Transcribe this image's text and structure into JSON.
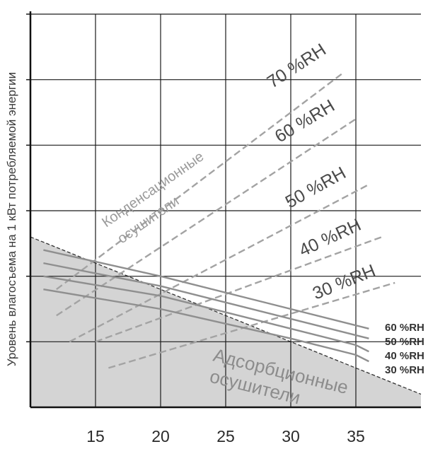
{
  "chart_data": {
    "type": "line",
    "title": "",
    "xlabel": "",
    "ylabel": "Уровень влагосъема на 1 кВт потребляемой энергии",
    "x_ticks": [
      15,
      20,
      25,
      30,
      35
    ],
    "xlim": [
      10,
      40
    ],
    "ylim": [
      0,
      6
    ],
    "grid": true,
    "regions": {
      "condensation": "Конденсационные осушители",
      "adsorption": "Адсорбционные осушители",
      "adsorption_boundary": {
        "x": [
          10,
          40
        ],
        "y": [
          2.6,
          0.2
        ]
      }
    },
    "condensation_series": [
      {
        "name": "70 %RH",
        "x": [
          12,
          34
        ],
        "y": [
          1.8,
          5.1
        ]
      },
      {
        "name": "60 %RH",
        "x": [
          12,
          35
        ],
        "y": [
          1.4,
          4.4
        ]
      },
      {
        "name": "50 %RH",
        "x": [
          13,
          36
        ],
        "y": [
          1.0,
          3.4
        ]
      },
      {
        "name": "40 %RH",
        "x": [
          15,
          37
        ],
        "y": [
          1.0,
          2.6
        ]
      },
      {
        "name": "30 %RH",
        "x": [
          16,
          38
        ],
        "y": [
          0.6,
          1.9
        ]
      }
    ],
    "adsorption_series": [
      {
        "name": "60 %RH",
        "x": [
          11,
          20,
          30,
          35,
          36
        ],
        "y": [
          2.4,
          2.0,
          1.5,
          1.25,
          1.2
        ]
      },
      {
        "name": "50 %RH",
        "x": [
          11,
          20,
          30,
          35,
          36
        ],
        "y": [
          2.2,
          1.85,
          1.35,
          1.1,
          1.05
        ]
      },
      {
        "name": "40 %RH",
        "x": [
          11,
          20,
          30,
          35,
          36
        ],
        "y": [
          2.0,
          1.7,
          1.2,
          0.95,
          0.85
        ]
      },
      {
        "name": "30 %RH",
        "x": [
          11,
          20,
          30,
          35,
          36
        ],
        "y": [
          1.8,
          1.5,
          1.05,
          0.8,
          0.7
        ]
      }
    ]
  }
}
